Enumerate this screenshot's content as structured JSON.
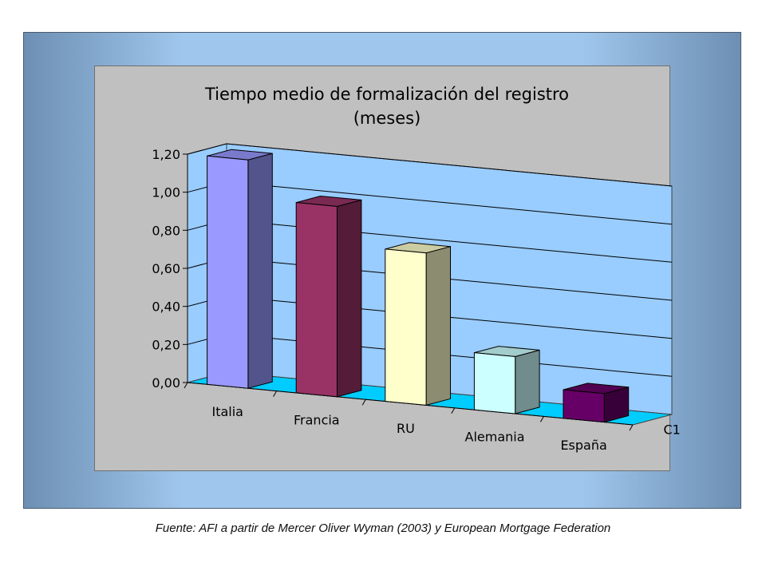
{
  "chart_data": {
    "type": "bar",
    "title": "Tiempo medio de formalización del registro",
    "subtitle": "(meses)",
    "categories": [
      "Italia",
      "Francia",
      "RU",
      "Alemania",
      "España"
    ],
    "series": [
      {
        "values": [
          1.2,
          1.0,
          0.8,
          0.3,
          0.15
        ]
      }
    ],
    "series_depth_label": "C1",
    "ylim": [
      0,
      1.2
    ],
    "yticks": [
      "0,00",
      "0,20",
      "0,40",
      "0,60",
      "0,80",
      "1,00",
      "1,20"
    ],
    "grid": true,
    "three_d": true,
    "bar_colors": [
      "#9999ff",
      "#993366",
      "#ffffcc",
      "#ccffff",
      "#660066"
    ],
    "wall_color": "#99ccff",
    "floor_color": "#00ccff",
    "background_color": "#c0c0c0"
  },
  "source_note": "Fuente: AFI a partir de Mercer Oliver Wyman (2003) y European Mortgage Federation"
}
